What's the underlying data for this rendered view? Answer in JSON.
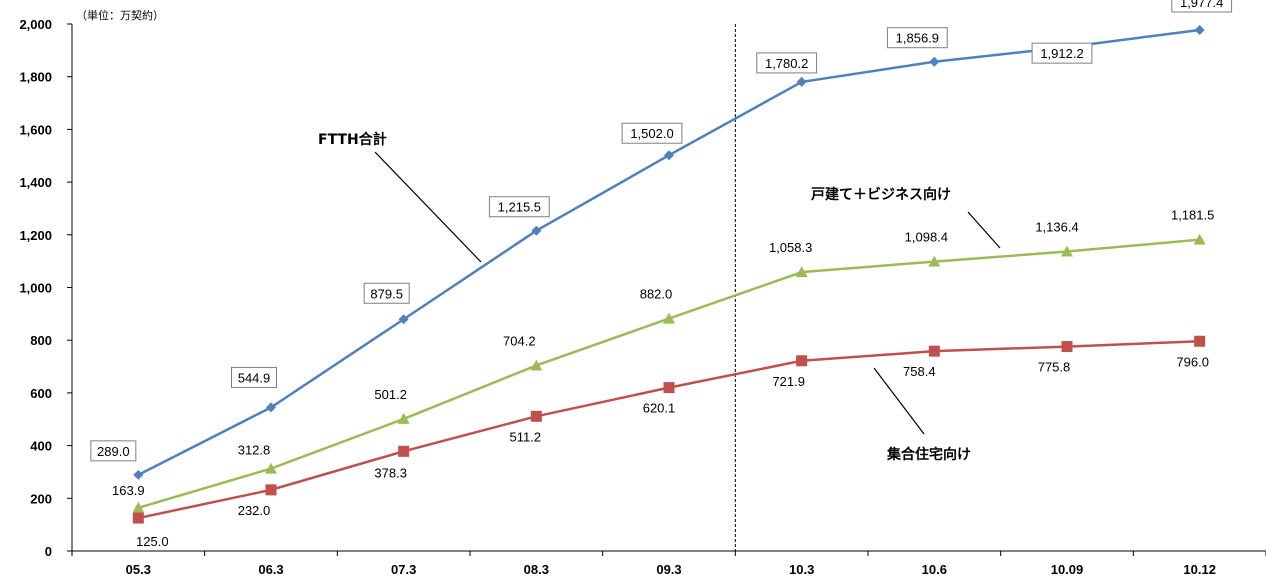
{
  "chart_data": {
    "type": "line",
    "unit": "（単位：万契約）",
    "categories": [
      "05.3",
      "06.3",
      "07.3",
      "08.3",
      "09.3",
      "10.3",
      "10.6",
      "10.09",
      "10.12"
    ],
    "y_ticks": [
      "0",
      "200",
      "400",
      "600",
      "800",
      "1,000",
      "1,200",
      "1,400",
      "1,600",
      "1,800",
      "2,000"
    ],
    "ylim": [
      0,
      2000
    ],
    "grid": false,
    "series": [
      {
        "name": "FTTH合計",
        "color": "#4F81BD",
        "marker": "diamond",
        "values": [
          289.0,
          544.9,
          879.5,
          1215.5,
          1502.0,
          1780.2,
          1856.9,
          1912.2,
          1977.4
        ],
        "labels": [
          "289.0",
          "544.9",
          "879.5",
          "1,215.5",
          "1,502.0",
          "1,780.2",
          "1,856.9",
          "1,912.2",
          "1,977.4"
        ]
      },
      {
        "name": "戸建て＋ビジネス向け",
        "color": "#9BBB59",
        "marker": "triangle",
        "values": [
          163.9,
          312.8,
          501.2,
          704.2,
          882.0,
          1058.3,
          1098.4,
          1136.4,
          1181.5
        ],
        "labels": [
          "163.9",
          "312.8",
          "501.2",
          "704.2",
          "882.0",
          "1,058.3",
          "1,098.4",
          "1,136.4",
          "1,181.5"
        ]
      },
      {
        "name": "集合住宅向け",
        "color": "#C0504D",
        "marker": "square",
        "values": [
          125.0,
          232.0,
          378.3,
          511.2,
          620.1,
          721.9,
          758.4,
          775.8,
          796.0
        ],
        "labels": [
          "125.0",
          "232.0",
          "378.3",
          "511.2",
          "620.1",
          "721.9",
          "758.4",
          "775.8",
          "796.0"
        ]
      }
    ]
  }
}
